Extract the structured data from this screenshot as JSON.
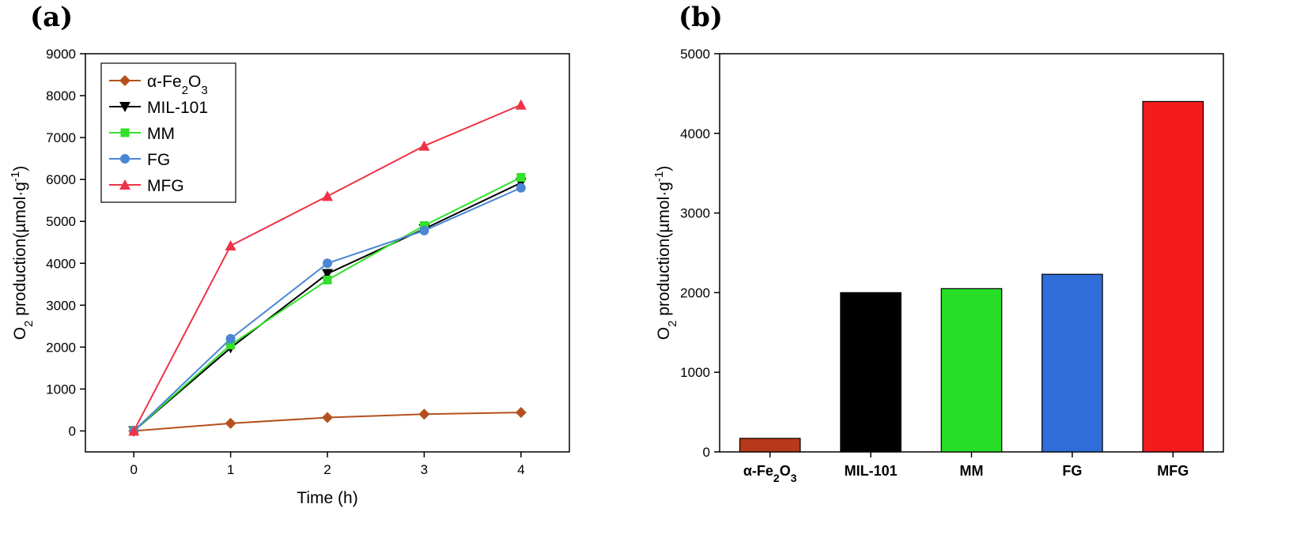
{
  "panels": {
    "a_label": "(a)",
    "b_label": "(b)"
  },
  "chart_data": [
    {
      "type": "line",
      "xlabel": "Time (h)",
      "ylabel": {
        "prefix": "O",
        "sub": "2",
        "text": " production(µmol·g",
        "sup": "-1",
        "suffix": ")"
      },
      "xlim": [
        -0.5,
        4.5
      ],
      "ylim": [
        -500,
        9000
      ],
      "xticks": [
        0,
        1,
        2,
        3,
        4
      ],
      "yticks": [
        0,
        1000,
        2000,
        3000,
        4000,
        5000,
        6000,
        7000,
        8000,
        9000
      ],
      "legend_position": "top-left",
      "x": [
        0,
        1,
        2,
        3,
        4
      ],
      "series": [
        {
          "name": "α-Fe",
          "name_sub": "2",
          "name_after": "O",
          "name_sub2": "3",
          "color": "#b5501e",
          "marker": "diamond",
          "values": [
            0,
            180,
            320,
            400,
            440
          ]
        },
        {
          "name": "MIL-101",
          "color": "#000000",
          "marker": "triangle-down",
          "values": [
            0,
            1980,
            3750,
            4820,
            5920
          ]
        },
        {
          "name": "MM",
          "color": "#33e02b",
          "marker": "square",
          "values": [
            0,
            2050,
            3600,
            4900,
            6050
          ]
        },
        {
          "name": "FG",
          "color": "#4a86d4",
          "marker": "circle",
          "values": [
            0,
            2200,
            4000,
            4780,
            5800
          ]
        },
        {
          "name": "MFG",
          "color": "#ee3344",
          "marker": "triangle-up",
          "values": [
            0,
            4420,
            5600,
            6800,
            7780
          ]
        }
      ]
    },
    {
      "type": "bar",
      "ylabel": {
        "prefix": "O",
        "sub": "2",
        "text": " production(µmol·g",
        "sup": "-1",
        "suffix": ")"
      },
      "ylim": [
        0,
        5000
      ],
      "yticks": [
        0,
        1000,
        2000,
        3000,
        4000,
        5000
      ],
      "categories": [
        {
          "label": "α-Fe",
          "sub": "2",
          "after": "O",
          "sub2": "3"
        },
        {
          "label": "MIL-101"
        },
        {
          "label": "MM"
        },
        {
          "label": "FG"
        },
        {
          "label": "MFG"
        }
      ],
      "values": [
        170,
        2000,
        2050,
        2230,
        4400
      ],
      "colors": [
        "#b7381a",
        "#000000",
        "#27dd27",
        "#2f6dd8",
        "#f31b1b"
      ]
    }
  ]
}
